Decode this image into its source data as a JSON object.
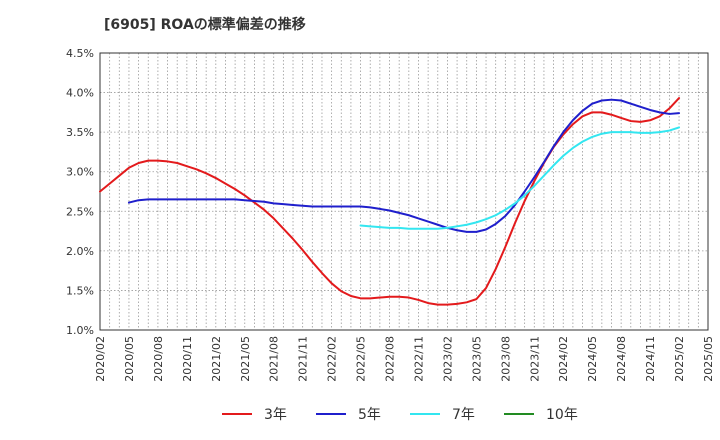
{
  "chart_data": {
    "type": "line",
    "title": "[6905]  ROAの標準偏差の推移",
    "xlabel": "",
    "ylabel": "",
    "x_start": "2020/02",
    "x_end": "2025/05",
    "x_ticks": [
      "2020/02",
      "2020/05",
      "2020/08",
      "2020/11",
      "2021/02",
      "2021/05",
      "2021/08",
      "2021/11",
      "2022/02",
      "2022/05",
      "2022/08",
      "2022/11",
      "2023/02",
      "2023/05",
      "2023/08",
      "2023/11",
      "2024/02",
      "2024/05",
      "2024/08",
      "2024/11",
      "2025/02",
      "2025/05"
    ],
    "ylim": [
      1.0,
      4.5
    ],
    "y_ticks": [
      1.0,
      1.5,
      2.0,
      2.5,
      3.0,
      3.5,
      4.0,
      4.5
    ],
    "y_tick_labels": [
      "1.0%",
      "1.5%",
      "2.0%",
      "2.5%",
      "3.0%",
      "3.5%",
      "4.0%",
      "4.5%"
    ],
    "grid": true,
    "legend_position": "bottom",
    "series": [
      {
        "name": "3年",
        "color": "#e31a1c",
        "points": [
          [
            "2020/02",
            2.75
          ],
          [
            "2020/03",
            2.85
          ],
          [
            "2020/04",
            2.95
          ],
          [
            "2020/05",
            3.05
          ],
          [
            "2020/06",
            3.11
          ],
          [
            "2020/07",
            3.14
          ],
          [
            "2020/08",
            3.14
          ],
          [
            "2020/09",
            3.13
          ],
          [
            "2020/10",
            3.11
          ],
          [
            "2020/11",
            3.07
          ],
          [
            "2020/12",
            3.03
          ],
          [
            "2021/01",
            2.98
          ],
          [
            "2021/02",
            2.92
          ],
          [
            "2021/03",
            2.85
          ],
          [
            "2021/04",
            2.78
          ],
          [
            "2021/05",
            2.7
          ],
          [
            "2021/06",
            2.61
          ],
          [
            "2021/07",
            2.52
          ],
          [
            "2021/08",
            2.41
          ],
          [
            "2021/09",
            2.28
          ],
          [
            "2021/10",
            2.15
          ],
          [
            "2021/11",
            2.01
          ],
          [
            "2021/12",
            1.86
          ],
          [
            "2022/01",
            1.72
          ],
          [
            "2022/02",
            1.59
          ],
          [
            "2022/03",
            1.49
          ],
          [
            "2022/04",
            1.43
          ],
          [
            "2022/05",
            1.4
          ],
          [
            "2022/06",
            1.4
          ],
          [
            "2022/07",
            1.41
          ],
          [
            "2022/08",
            1.42
          ],
          [
            "2022/09",
            1.42
          ],
          [
            "2022/10",
            1.41
          ],
          [
            "2022/11",
            1.38
          ],
          [
            "2022/12",
            1.34
          ],
          [
            "2023/01",
            1.32
          ],
          [
            "2023/02",
            1.32
          ],
          [
            "2023/03",
            1.33
          ],
          [
            "2023/04",
            1.35
          ],
          [
            "2023/05",
            1.39
          ],
          [
            "2023/06",
            1.53
          ],
          [
            "2023/07",
            1.77
          ],
          [
            "2023/08",
            2.05
          ],
          [
            "2023/09",
            2.35
          ],
          [
            "2023/10",
            2.63
          ],
          [
            "2023/11",
            2.88
          ],
          [
            "2023/12",
            3.11
          ],
          [
            "2024/01",
            3.31
          ],
          [
            "2024/02",
            3.47
          ],
          [
            "2024/03",
            3.6
          ],
          [
            "2024/04",
            3.7
          ],
          [
            "2024/05",
            3.75
          ],
          [
            "2024/06",
            3.75
          ],
          [
            "2024/07",
            3.72
          ],
          [
            "2024/08",
            3.68
          ],
          [
            "2024/09",
            3.64
          ],
          [
            "2024/10",
            3.63
          ],
          [
            "2024/11",
            3.65
          ],
          [
            "2024/12",
            3.7
          ],
          [
            "2025/01",
            3.8
          ],
          [
            "2025/02",
            3.93
          ]
        ]
      },
      {
        "name": "5年",
        "color": "#1f1fcc",
        "points": [
          [
            "2020/05",
            2.61
          ],
          [
            "2020/06",
            2.64
          ],
          [
            "2020/07",
            2.65
          ],
          [
            "2020/08",
            2.65
          ],
          [
            "2020/09",
            2.65
          ],
          [
            "2020/10",
            2.65
          ],
          [
            "2020/11",
            2.65
          ],
          [
            "2020/12",
            2.65
          ],
          [
            "2021/01",
            2.65
          ],
          [
            "2021/02",
            2.65
          ],
          [
            "2021/03",
            2.65
          ],
          [
            "2021/04",
            2.65
          ],
          [
            "2021/05",
            2.64
          ],
          [
            "2021/06",
            2.63
          ],
          [
            "2021/07",
            2.62
          ],
          [
            "2021/08",
            2.6
          ],
          [
            "2021/09",
            2.59
          ],
          [
            "2021/10",
            2.58
          ],
          [
            "2021/11",
            2.57
          ],
          [
            "2021/12",
            2.56
          ],
          [
            "2022/01",
            2.56
          ],
          [
            "2022/02",
            2.56
          ],
          [
            "2022/03",
            2.56
          ],
          [
            "2022/04",
            2.56
          ],
          [
            "2022/05",
            2.56
          ],
          [
            "2022/06",
            2.55
          ],
          [
            "2022/07",
            2.53
          ],
          [
            "2022/08",
            2.51
          ],
          [
            "2022/09",
            2.48
          ],
          [
            "2022/10",
            2.45
          ],
          [
            "2022/11",
            2.41
          ],
          [
            "2022/12",
            2.37
          ],
          [
            "2023/01",
            2.33
          ],
          [
            "2023/02",
            2.29
          ],
          [
            "2023/03",
            2.26
          ],
          [
            "2023/04",
            2.24
          ],
          [
            "2023/05",
            2.24
          ],
          [
            "2023/06",
            2.27
          ],
          [
            "2023/07",
            2.34
          ],
          [
            "2023/08",
            2.44
          ],
          [
            "2023/09",
            2.58
          ],
          [
            "2023/10",
            2.75
          ],
          [
            "2023/11",
            2.93
          ],
          [
            "2023/12",
            3.12
          ],
          [
            "2024/01",
            3.32
          ],
          [
            "2024/02",
            3.5
          ],
          [
            "2024/03",
            3.65
          ],
          [
            "2024/04",
            3.77
          ],
          [
            "2024/05",
            3.86
          ],
          [
            "2024/06",
            3.9
          ],
          [
            "2024/07",
            3.91
          ],
          [
            "2024/08",
            3.9
          ],
          [
            "2024/09",
            3.86
          ],
          [
            "2024/10",
            3.82
          ],
          [
            "2024/11",
            3.78
          ],
          [
            "2024/12",
            3.75
          ],
          [
            "2025/01",
            3.73
          ],
          [
            "2025/02",
            3.74
          ]
        ]
      },
      {
        "name": "7年",
        "color": "#33e6f0",
        "points": [
          [
            "2022/05",
            2.32
          ],
          [
            "2022/06",
            2.31
          ],
          [
            "2022/07",
            2.3
          ],
          [
            "2022/08",
            2.29
          ],
          [
            "2022/09",
            2.29
          ],
          [
            "2022/10",
            2.28
          ],
          [
            "2022/11",
            2.28
          ],
          [
            "2022/12",
            2.28
          ],
          [
            "2023/01",
            2.28
          ],
          [
            "2023/02",
            2.29
          ],
          [
            "2023/03",
            2.31
          ],
          [
            "2023/04",
            2.33
          ],
          [
            "2023/05",
            2.36
          ],
          [
            "2023/06",
            2.4
          ],
          [
            "2023/07",
            2.45
          ],
          [
            "2023/08",
            2.52
          ],
          [
            "2023/09",
            2.6
          ],
          [
            "2023/10",
            2.7
          ],
          [
            "2023/11",
            2.82
          ],
          [
            "2023/12",
            2.95
          ],
          [
            "2024/01",
            3.08
          ],
          [
            "2024/02",
            3.2
          ],
          [
            "2024/03",
            3.3
          ],
          [
            "2024/04",
            3.38
          ],
          [
            "2024/05",
            3.44
          ],
          [
            "2024/06",
            3.48
          ],
          [
            "2024/07",
            3.5
          ],
          [
            "2024/08",
            3.5
          ],
          [
            "2024/09",
            3.5
          ],
          [
            "2024/10",
            3.49
          ],
          [
            "2024/11",
            3.49
          ],
          [
            "2024/12",
            3.5
          ],
          [
            "2025/01",
            3.52
          ],
          [
            "2025/02",
            3.56
          ]
        ]
      },
      {
        "name": "10年",
        "color": "#228b22",
        "points": []
      }
    ]
  }
}
